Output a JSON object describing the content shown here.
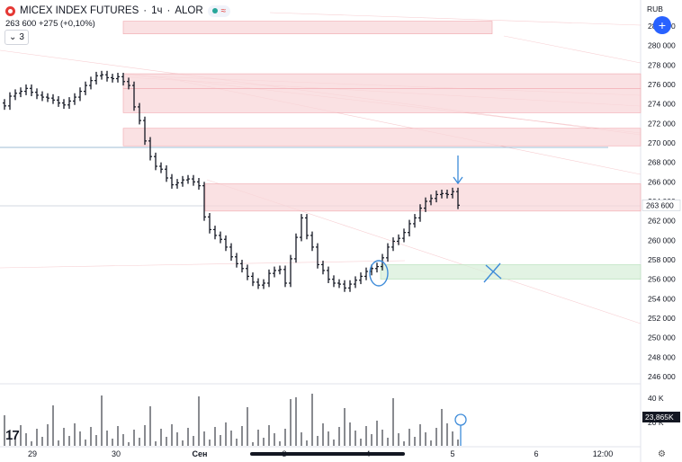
{
  "header": {
    "symbol": "MICEX INDEX FUTURES",
    "interval": "1ч",
    "broker": "ALOR",
    "separator": "·",
    "pill_icon": "approx-icon",
    "pill_glyph": "≈",
    "last_line": "263 600  +275 (+0,10%)",
    "legend_toggle": "3"
  },
  "currency": "RUB",
  "plus_button": "+",
  "colors": {
    "zone_red": "#f8d7da",
    "zone_red_border": "#f1a7ad",
    "zone_green": "#d8efd9",
    "annotation_blue": "#3d8bd9",
    "candle": "#131722",
    "volume": "#131722",
    "price_label_bg": "#ffffff",
    "volume_label_bg": "#131722"
  },
  "chart_data": {
    "type": "ohlc",
    "y_axis": {
      "ticks": [
        "282 000",
        "280 000",
        "278 000",
        "276 000",
        "274 000",
        "272 000",
        "270 000",
        "268 000",
        "266 000",
        "264 000",
        "262 000",
        "260 000",
        "258 000",
        "256 000",
        "254 000",
        "252 000",
        "250 000",
        "248 000",
        "246 000"
      ],
      "last_price_label": "263 600",
      "last_price": 263600
    },
    "x_axis": {
      "ticks": [
        "29",
        "30",
        "Сен",
        "3",
        "4",
        "5",
        "6",
        "12:00"
      ]
    },
    "volume_axis": {
      "ticks": [
        "40 K",
        "20 K"
      ],
      "last_volume_label": "23,865K"
    },
    "zones": [
      {
        "color": "red",
        "y_top": 282500,
        "y_bottom": 281200,
        "from_bar": "30",
        "to_bar": "4"
      },
      {
        "color": "red",
        "y_top": 277100,
        "y_bottom": 275600,
        "from_bar": "30",
        "to_bar": "end"
      },
      {
        "color": "red",
        "y_top": 275600,
        "y_bottom": 273100,
        "from_bar": "30",
        "to_bar": "end"
      },
      {
        "color": "red",
        "y_top": 271500,
        "y_bottom": 269700,
        "from_bar": "30",
        "to_bar": "end"
      },
      {
        "color": "red",
        "y_top": 265800,
        "y_bottom": 263000,
        "from_bar": "Сен",
        "to_bar": "end"
      },
      {
        "color": "green",
        "y_top": 257500,
        "y_bottom": 256000,
        "from_bar": "4",
        "to_bar": "5"
      }
    ],
    "closes": [
      273800,
      274800,
      275100,
      275300,
      275600,
      275200,
      274900,
      274700,
      274600,
      274400,
      274100,
      273900,
      274300,
      274700,
      275300,
      275900,
      276400,
      276900,
      277000,
      276700,
      276600,
      276800,
      276300,
      275900,
      273700,
      272300,
      270200,
      268600,
      267600,
      267300,
      266400,
      265700,
      265900,
      266200,
      266300,
      266000,
      265600,
      262400,
      261100,
      260500,
      260100,
      259300,
      258300,
      257600,
      257100,
      256300,
      255700,
      255400,
      255600,
      256600,
      256900,
      257000,
      255600,
      258100,
      260300,
      262300,
      260500,
      259300,
      257500,
      256900,
      256000,
      255600,
      255500,
      255100,
      255500,
      255900,
      256300,
      256800,
      257100,
      257300,
      258200,
      259300,
      259900,
      260200,
      260800,
      261700,
      262300,
      263300,
      264000,
      264300,
      264700,
      264800,
      264700,
      265000,
      263600
    ],
    "annotations": [
      {
        "type": "arrow-down",
        "at_bar": 84,
        "price": 265600
      },
      {
        "type": "circle",
        "at_bar": 63,
        "price": 256600
      },
      {
        "type": "cross",
        "at_bar": "5",
        "price": 256500
      },
      {
        "type": "circle-volume",
        "at_bar": 84
      }
    ]
  }
}
